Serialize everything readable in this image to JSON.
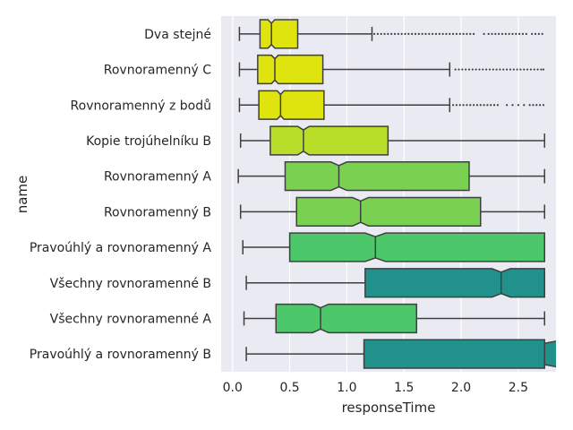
{
  "chart_data": {
    "type": "boxplot",
    "orientation": "horizontal",
    "notched": true,
    "xlabel": "responseTime",
    "ylabel": "name",
    "xlim": [
      -0.1,
      2.83
    ],
    "xticks": [
      "0.0",
      "0.5",
      "1.0",
      "1.5",
      "2.0",
      "2.5"
    ],
    "grid": true,
    "background": "#eaeaf2",
    "categories": [
      {
        "name": "Dva stejné",
        "whisker_low": 0.06,
        "q1": 0.24,
        "median": 0.34,
        "q3": 0.57,
        "whisker_high": 1.22,
        "notch_low": 0.31,
        "notch_high": 0.37,
        "color": "#dfe40f",
        "outliers": [
          1.24,
          1.27,
          1.3,
          1.33,
          1.36,
          1.39,
          1.42,
          1.45,
          1.48,
          1.51,
          1.54,
          1.57,
          1.6,
          1.63,
          1.66,
          1.69,
          1.72,
          1.75,
          1.78,
          1.81,
          1.84,
          1.87,
          1.9,
          1.93,
          1.96,
          1.99,
          2.02,
          2.05,
          2.08,
          2.11,
          2.2,
          2.24,
          2.27,
          2.3,
          2.33,
          2.36,
          2.39,
          2.42,
          2.45,
          2.48,
          2.51,
          2.54,
          2.57,
          2.62,
          2.65,
          2.68,
          2.71
        ]
      },
      {
        "name": "Rovnoramenný C",
        "whisker_low": 0.06,
        "q1": 0.22,
        "median": 0.37,
        "q3": 0.79,
        "whisker_high": 1.9,
        "notch_low": 0.34,
        "notch_high": 0.4,
        "color": "#dfe40f",
        "outliers": [
          1.95,
          1.98,
          2.01,
          2.04,
          2.07,
          2.1,
          2.13,
          2.16,
          2.19,
          2.22,
          2.25,
          2.28,
          2.31,
          2.34,
          2.37,
          2.4,
          2.43,
          2.46,
          2.49,
          2.52,
          2.55,
          2.58,
          2.61,
          2.64,
          2.67,
          2.7,
          2.72
        ]
      },
      {
        "name": "Rovnoramenný z bodů",
        "whisker_low": 0.06,
        "q1": 0.23,
        "median": 0.42,
        "q3": 0.8,
        "whisker_high": 1.9,
        "notch_low": 0.39,
        "notch_high": 0.45,
        "color": "#dfe40f",
        "outliers": [
          1.93,
          1.96,
          1.99,
          2.02,
          2.05,
          2.08,
          2.11,
          2.14,
          2.17,
          2.2,
          2.23,
          2.26,
          2.29,
          2.32,
          2.4,
          2.45,
          2.5,
          2.55,
          2.6,
          2.63,
          2.66,
          2.69,
          2.72
        ]
      },
      {
        "name": "Kopie trojúhelníku B",
        "whisker_low": 0.07,
        "q1": 0.33,
        "median": 0.62,
        "q3": 1.36,
        "whisker_high": 2.73,
        "notch_low": 0.57,
        "notch_high": 0.67,
        "color": "#b8de29",
        "outliers": []
      },
      {
        "name": "Rovnoramenný A",
        "whisker_low": 0.05,
        "q1": 0.46,
        "median": 0.93,
        "q3": 2.07,
        "whisker_high": 2.73,
        "notch_low": 0.86,
        "notch_high": 1.0,
        "color": "#7ad151",
        "outliers": []
      },
      {
        "name": "Rovnoramenný B",
        "whisker_low": 0.07,
        "q1": 0.56,
        "median": 1.12,
        "q3": 2.17,
        "whisker_high": 2.73,
        "notch_low": 1.05,
        "notch_high": 1.19,
        "color": "#7ad151",
        "outliers": []
      },
      {
        "name": "Pravoúhlý a rovnoramenný A",
        "whisker_low": 0.09,
        "q1": 0.5,
        "median": 1.25,
        "q3": 2.73,
        "whisker_high": 2.73,
        "notch_low": 1.16,
        "notch_high": 1.34,
        "color": "#4cc76a",
        "outliers": []
      },
      {
        "name": "Všechny rovnoramenné B",
        "whisker_low": 0.12,
        "q1": 1.16,
        "median": 2.35,
        "q3": 2.73,
        "whisker_high": 2.73,
        "notch_low": 2.27,
        "notch_high": 2.43,
        "color": "#21918c",
        "outliers": []
      },
      {
        "name": "Všechny rovnoramenné A",
        "whisker_low": 0.1,
        "q1": 0.38,
        "median": 0.77,
        "q3": 1.61,
        "whisker_high": 2.73,
        "notch_low": 0.7,
        "notch_high": 0.84,
        "color": "#4cc76a",
        "outliers": []
      },
      {
        "name": "Pravoúhlý a rovnoramenný B",
        "whisker_low": 0.12,
        "q1": 1.15,
        "median": 2.73,
        "q3": 2.9,
        "whisker_high": 2.9,
        "notch_low": 2.73,
        "notch_high": 2.9,
        "color": "#21918c",
        "outliers": []
      }
    ]
  }
}
